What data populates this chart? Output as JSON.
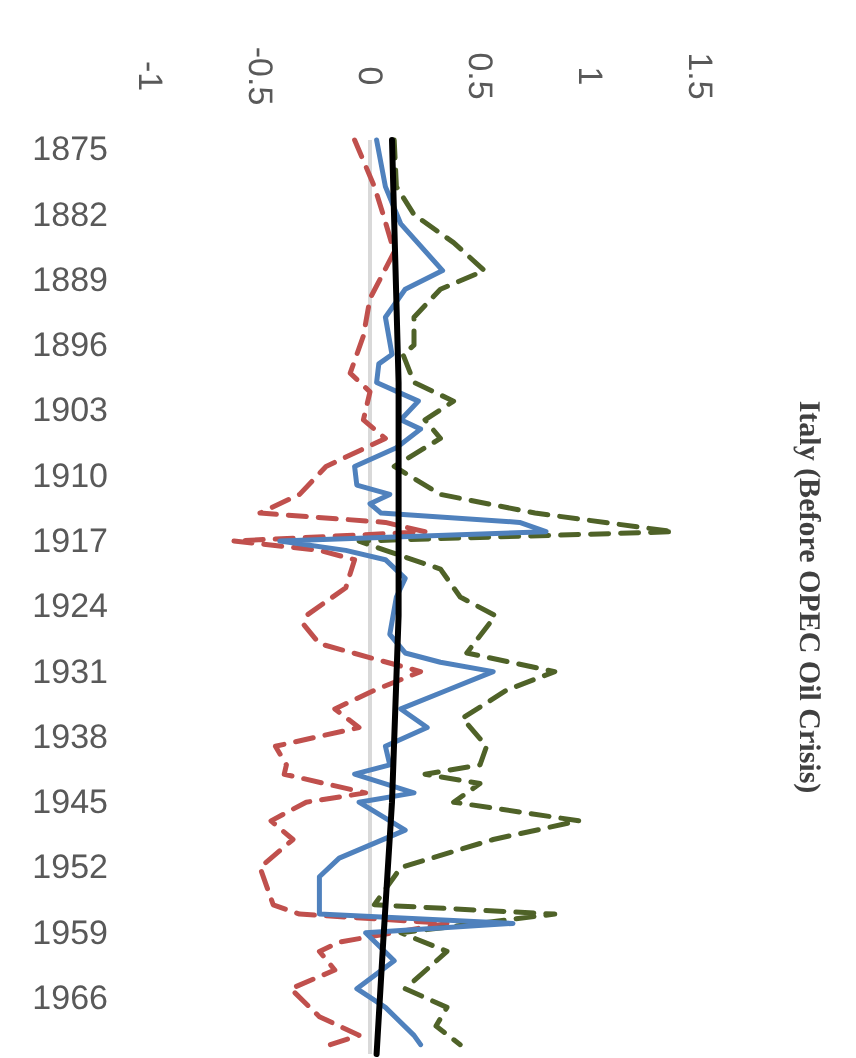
{
  "chart_data": {
    "type": "line",
    "orientation": "horizontal",
    "title": "Italy (Before OPEC Oil Crisis)",
    "ylim": [
      1972,
      1874
    ],
    "yticks": [
      1875,
      1882,
      1889,
      1896,
      1903,
      1910,
      1917,
      1924,
      1931,
      1938,
      1945,
      1952,
      1959,
      1966
    ],
    "xlim": [
      -1,
      1.5
    ],
    "xticks": [
      -1,
      -0.5,
      0,
      0.5,
      1,
      1.5
    ],
    "series": [
      {
        "color": "#c0504d",
        "line_style": "dashed",
        "x": [
          1874,
          1879,
          1882,
          1886,
          1891,
          1895,
          1899,
          1901,
          1904,
          1906,
          1909,
          1912,
          1914,
          1915,
          1916,
          1917,
          1918,
          1919,
          1922,
          1925,
          1926,
          1928,
          1931,
          1933,
          1935,
          1937,
          1939,
          1941,
          1942,
          1944,
          1945,
          1947,
          1949,
          1952,
          1956,
          1957,
          1958,
          1960,
          1961,
          1963,
          1965,
          1968,
          1970,
          1971
        ],
        "values": [
          -0.07,
          0.02,
          0.06,
          0.11,
          0,
          -0.03,
          -0.09,
          0,
          -0.03,
          0.07,
          -0.2,
          -0.32,
          -0.5,
          0.07,
          0.25,
          -0.62,
          -0.23,
          -0.07,
          -0.11,
          -0.29,
          -0.3,
          -0.23,
          0.23,
          0.02,
          -0.16,
          -0.05,
          -0.43,
          -0.38,
          -0.39,
          -0.02,
          -0.29,
          -0.45,
          -0.35,
          -0.5,
          -0.44,
          -0.32,
          0.35,
          -0.14,
          -0.23,
          -0.16,
          -0.36,
          -0.23,
          -0.05,
          -0.18
        ]
      },
      {
        "color": "#4f6228",
        "line_style": "dashed",
        "x": [
          1874,
          1879,
          1882,
          1885,
          1888,
          1890,
          1893,
          1896,
          1897,
          1900,
          1902,
          1904,
          1906,
          1909,
          1912,
          1914,
          1916,
          1917,
          1918,
          1920,
          1923,
          1925,
          1929,
          1931,
          1933,
          1936,
          1939,
          1941,
          1942,
          1943,
          1945,
          1947,
          1949,
          1952,
          1956,
          1957,
          1959,
          1961,
          1965,
          1967,
          1969,
          1971
        ],
        "values": [
          0.11,
          0.12,
          0.2,
          0.38,
          0.52,
          0.32,
          0.2,
          0.2,
          0.15,
          0.2,
          0.38,
          0.25,
          0.32,
          0.11,
          0.32,
          0.75,
          1.38,
          -0.05,
          0.07,
          0.32,
          0.41,
          0.57,
          0.44,
          0.84,
          0.62,
          0.42,
          0.53,
          0.5,
          0.25,
          0.5,
          0.38,
          0.95,
          0.56,
          0.14,
          0.02,
          0.84,
          0.14,
          0.35,
          0.16,
          0.35,
          0.3,
          0.41
        ]
      },
      {
        "color": "#4f81bd",
        "line_style": "solid",
        "x": [
          1874,
          1879,
          1883,
          1888,
          1890,
          1893,
          1897,
          1898,
          1900,
          1902,
          1904,
          1905,
          1907,
          1909,
          1911,
          1912,
          1913,
          1914,
          1915,
          1916,
          1917,
          1918,
          1919,
          1921,
          1923,
          1927,
          1929,
          1930,
          1931,
          1933,
          1935,
          1937,
          1939,
          1941,
          1942,
          1944,
          1945,
          1948,
          1951,
          1953,
          1957,
          1958,
          1959,
          1962,
          1965,
          1967,
          1970,
          1971
        ],
        "values": [
          0.03,
          0.07,
          0.14,
          0.33,
          0.16,
          0.07,
          0.1,
          0.04,
          0.03,
          0.22,
          0.14,
          0.23,
          0.12,
          -0.07,
          -0.06,
          0.09,
          0,
          0.05,
          0.68,
          0.8,
          -0.41,
          -0.11,
          0.07,
          0.16,
          0.12,
          0.09,
          0.16,
          0.32,
          0.56,
          0.35,
          0.14,
          0.26,
          0.07,
          0.09,
          -0.07,
          0.2,
          -0.05,
          0.16,
          -0.14,
          -0.23,
          -0.23,
          0.65,
          -0.02,
          0.11,
          -0.06,
          0.07,
          0.2,
          0.23
        ]
      },
      {
        "color": "#000000",
        "line_style": "solid",
        "x": [
          1874,
          1900,
          1925,
          1945,
          1960,
          1972
        ],
        "values": [
          0.1,
          0.13,
          0.13,
          0.1,
          0.06,
          0.03
        ]
      }
    ]
  }
}
